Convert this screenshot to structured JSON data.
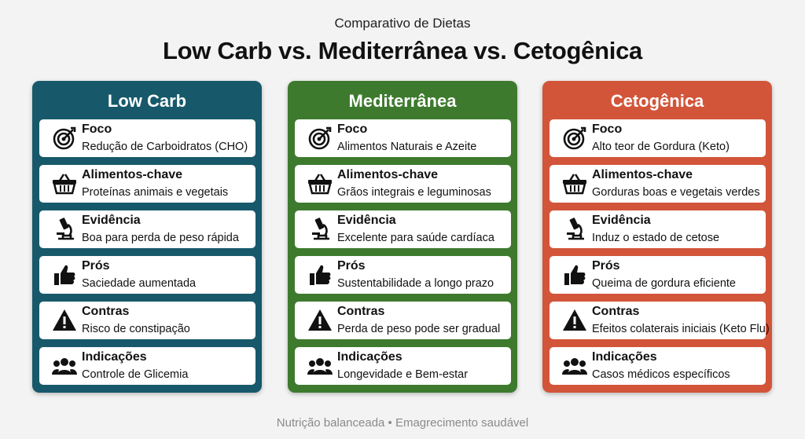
{
  "header": {
    "subtitle": "Comparativo de Dietas",
    "title": "Low Carb vs. Mediterrânea vs. Cetogênica"
  },
  "columns": [
    {
      "title": "Low Carb",
      "rows": [
        {
          "label": "Foco",
          "text": "Redução de Carboidratos (CHO)"
        },
        {
          "label": "Alimentos-chave",
          "text": "Proteínas animais e vegetais"
        },
        {
          "label": "Evidência",
          "text": "Boa para perda de peso rápida"
        },
        {
          "label": "Prós",
          "text": "Saciedade aumentada"
        },
        {
          "label": "Contras",
          "text": "Risco de constipação"
        },
        {
          "label": "Indicações",
          "text": "Controle de Glicemia"
        }
      ]
    },
    {
      "title": "Mediterrânea",
      "rows": [
        {
          "label": "Foco",
          "text": "Alimentos Naturais e Azeite"
        },
        {
          "label": "Alimentos-chave",
          "text": "Grãos integrais e leguminosas"
        },
        {
          "label": "Evidência",
          "text": "Excelente para saúde cardíaca"
        },
        {
          "label": "Prós",
          "text": "Sustentabilidade a longo prazo"
        },
        {
          "label": "Contras",
          "text": "Perda de peso pode ser gradual"
        },
        {
          "label": "Indicações",
          "text": "Longevidade e Bem-estar"
        }
      ]
    },
    {
      "title": "Cetogênica",
      "rows": [
        {
          "label": "Foco",
          "text": "Alto teor de Gordura (Keto)"
        },
        {
          "label": "Alimentos-chave",
          "text": "Gorduras boas e vegetais verdes"
        },
        {
          "label": "Evidência",
          "text": "Induz o estado de cetose"
        },
        {
          "label": "Prós",
          "text": "Queima de gordura eficiente"
        },
        {
          "label": "Contras",
          "text": "Efeitos colaterais iniciais (Keto Flu)"
        },
        {
          "label": "Indicações",
          "text": "Casos médicos específicos"
        }
      ]
    }
  ],
  "footer": "Nutrição balanceada • Emagrecimento saudável"
}
